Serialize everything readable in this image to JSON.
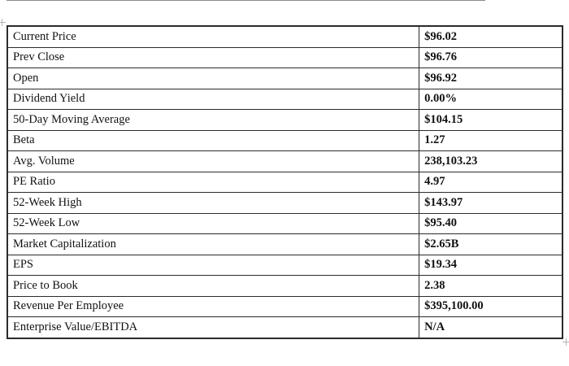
{
  "page": {
    "background": "#ffffff",
    "border_color": "#2b2b2b",
    "text_color": "#111111",
    "handle_color": "#b4b4b4"
  },
  "table": {
    "name": "stock-key-statistics",
    "columns": [
      "metric",
      "value"
    ],
    "rows": [
      {
        "label": "Current Price",
        "value": "$96.02"
      },
      {
        "label": "Prev Close",
        "value": "$96.76"
      },
      {
        "label": "Open",
        "value": "$96.92"
      },
      {
        "label": "Dividend Yield",
        "value": "0.00%"
      },
      {
        "label": "50-Day Moving Average",
        "value": "$104.15"
      },
      {
        "label": "Beta",
        "value": "1.27"
      },
      {
        "label": "Avg. Volume",
        "value": "238,103.23"
      },
      {
        "label": "PE Ratio",
        "value": "4.97"
      },
      {
        "label": "52-Week High",
        "value": "$143.97"
      },
      {
        "label": "52-Week Low",
        "value": "$95.40"
      },
      {
        "label": "Market Capitalization",
        "value": "$2.65B"
      },
      {
        "label": "EPS",
        "value": "$19.34"
      },
      {
        "label": "Price to Book",
        "value": "2.38"
      },
      {
        "label": "Revenue Per Employee",
        "value": "$395,100.00"
      },
      {
        "label": "Enterprise Value/EBITDA",
        "value": "N/A"
      }
    ]
  }
}
